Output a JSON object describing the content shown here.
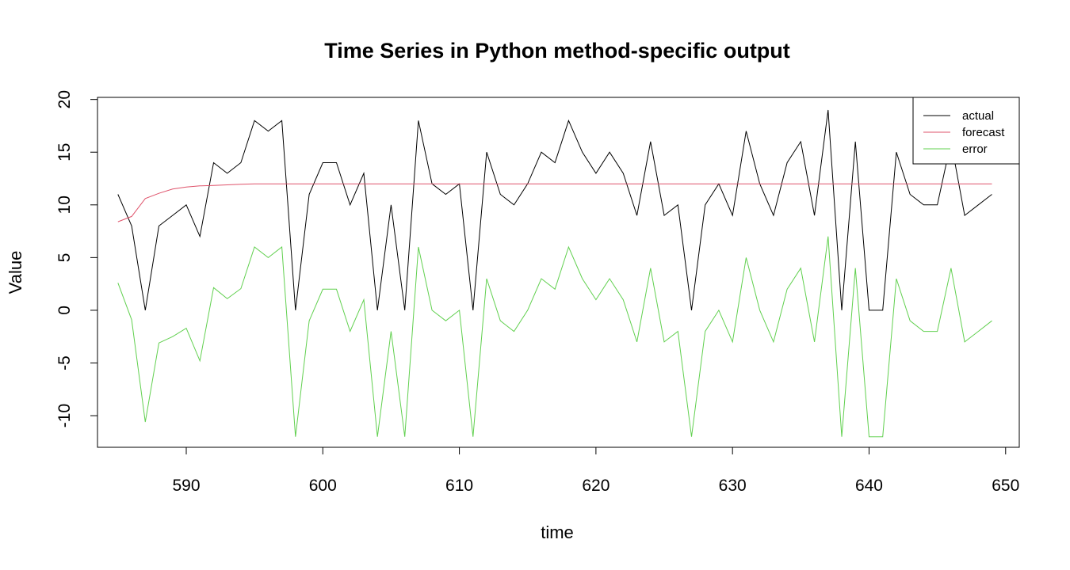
{
  "chart_data": {
    "type": "line",
    "title": "Time Series in Python method-specific output",
    "xlabel": "time",
    "ylabel": "Value",
    "xlim": [
      583.5,
      651
    ],
    "ylim": [
      -13,
      20.2
    ],
    "xticks": [
      590,
      600,
      610,
      620,
      630,
      640,
      650
    ],
    "yticks": [
      -10,
      -5,
      0,
      5,
      10,
      15,
      20
    ],
    "grid": false,
    "legend_position": "top-right",
    "x": [
      585,
      586,
      587,
      588,
      589,
      590,
      591,
      592,
      593,
      594,
      595,
      596,
      597,
      598,
      599,
      600,
      601,
      602,
      603,
      604,
      605,
      606,
      607,
      608,
      609,
      610,
      611,
      612,
      613,
      614,
      615,
      616,
      617,
      618,
      619,
      620,
      621,
      622,
      623,
      624,
      625,
      626,
      627,
      628,
      629,
      630,
      631,
      632,
      633,
      634,
      635,
      636,
      637,
      638,
      639,
      640,
      641,
      642,
      643,
      644,
      645,
      646,
      647,
      648,
      649
    ],
    "series": [
      {
        "name": "actual",
        "color": "#000000",
        "values": [
          11,
          8,
          0,
          8,
          9,
          10,
          7,
          14,
          13,
          14,
          18,
          17,
          18,
          0,
          11,
          14,
          14,
          10,
          13,
          0,
          10,
          0,
          18,
          12,
          11,
          12,
          0,
          15,
          11,
          10,
          12,
          15,
          14,
          18,
          15,
          13,
          15,
          13,
          9,
          16,
          9,
          10,
          0,
          10,
          12,
          9,
          17,
          12,
          9,
          14,
          16,
          9,
          19,
          0,
          16,
          0,
          0,
          15,
          11,
          10,
          10,
          16,
          9,
          10,
          11
        ]
      },
      {
        "name": "forecast",
        "color": "#DF536B",
        "values": [
          8.4,
          8.9,
          10.6,
          11.1,
          11.5,
          11.7,
          11.8,
          11.85,
          11.9,
          11.95,
          12,
          12,
          12,
          12,
          12,
          12,
          12,
          12,
          12,
          12,
          12,
          12,
          12,
          12,
          12,
          12,
          12,
          12,
          12,
          12,
          12,
          12,
          12,
          12,
          12,
          12,
          12,
          12,
          12,
          12,
          12,
          12,
          12,
          12,
          12,
          12,
          12,
          12,
          12,
          12,
          12,
          12,
          12,
          12,
          12,
          12,
          12,
          12,
          12,
          12,
          12,
          12,
          12,
          12,
          12
        ]
      },
      {
        "name": "error",
        "color": "#61D04F",
        "values": [
          2.6,
          -0.9,
          -10.6,
          -3.1,
          -2.5,
          -1.7,
          -4.8,
          2.15,
          1.1,
          2.05,
          6,
          5,
          6,
          -12,
          -1,
          2,
          2,
          -2,
          1,
          -12,
          -2,
          -12,
          6,
          0,
          -1,
          0,
          -12,
          3,
          -1,
          -2,
          0,
          3,
          2,
          6,
          3,
          1,
          3,
          1,
          -3,
          4,
          -3,
          -2,
          -12,
          -2,
          0,
          -3,
          5,
          0,
          -3,
          2,
          4,
          -3,
          7,
          -12,
          4,
          -12,
          -12,
          3,
          -1,
          -2,
          -2,
          4,
          -3,
          -2,
          -1
        ]
      }
    ]
  }
}
